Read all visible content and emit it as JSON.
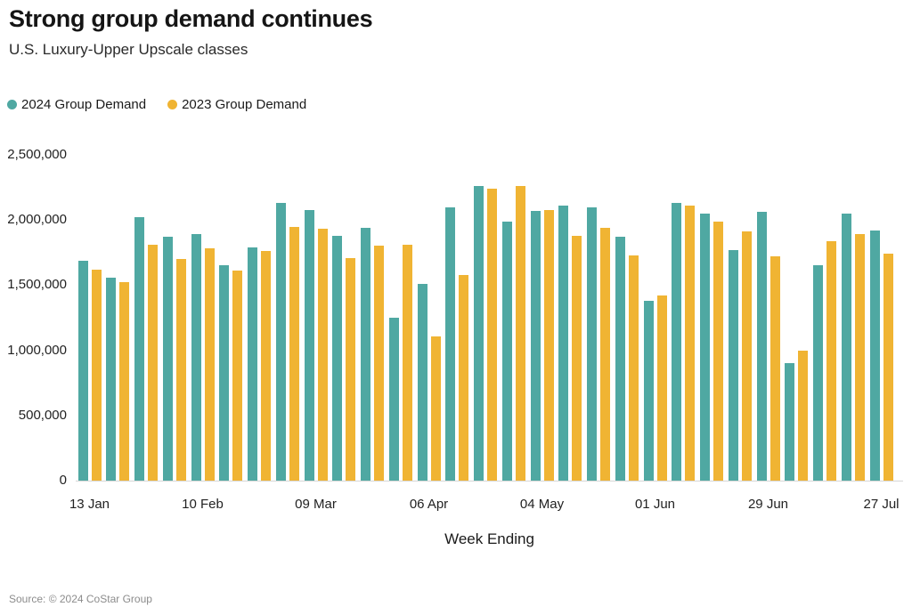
{
  "header": {
    "title": "Strong group demand continues",
    "subtitle": "U.S. Luxury-Upper Upscale classes"
  },
  "legend": {
    "items": [
      {
        "label": "2024 Group Demand",
        "color": "#4FA8A2"
      },
      {
        "label": "2023 Group Demand",
        "color": "#F0B433"
      }
    ]
  },
  "footer": {
    "source": "Source: © 2024 CoStar Group"
  },
  "chart_data": {
    "type": "bar",
    "title": "Strong group demand continues",
    "subtitle": "U.S. Luxury-Upper Upscale classes",
    "xlabel": "Week Ending",
    "ylabel": "",
    "ylim": [
      0,
      2500000
    ],
    "grid": false,
    "legend_position": "top-left",
    "bar_colors": {
      "2024": "#4FA8A2",
      "2023": "#F0B433"
    },
    "n_groups": 29,
    "y_ticks": [
      {
        "value": 2500000,
        "label": "2,500,000"
      },
      {
        "value": 2000000,
        "label": "2,000,000"
      },
      {
        "value": 1500000,
        "label": "1,500,000"
      },
      {
        "value": 1000000,
        "label": "1,000,000"
      },
      {
        "value": 500000,
        "label": "500,000"
      },
      {
        "value": 0,
        "label": "0"
      }
    ],
    "x_ticks": [
      {
        "group_index": 0,
        "label": "13 Jan"
      },
      {
        "group_index": 4,
        "label": "10 Feb"
      },
      {
        "group_index": 8,
        "label": "09 Mar"
      },
      {
        "group_index": 12,
        "label": "06 Apr"
      },
      {
        "group_index": 16,
        "label": "04 May"
      },
      {
        "group_index": 20,
        "label": "01 Jun"
      },
      {
        "group_index": 24,
        "label": "29 Jun"
      },
      {
        "group_index": 28,
        "label": "27 Jul"
      }
    ],
    "series": [
      {
        "name": "2024 Group Demand",
        "color": "#4FA8A2",
        "values": [
          1690000,
          1560000,
          2020000,
          1870000,
          1890000,
          1650000,
          1790000,
          2130000,
          2080000,
          1880000,
          1940000,
          1250000,
          1510000,
          2100000,
          2260000,
          1990000,
          2070000,
          2110000,
          2100000,
          1870000,
          1380000,
          2130000,
          2050000,
          1770000,
          2060000,
          900000,
          1650000,
          2050000,
          1920000
        ]
      },
      {
        "name": "2023 Group Demand",
        "color": "#F0B433",
        "values": [
          1620000,
          1520000,
          1810000,
          1700000,
          1780000,
          1610000,
          1760000,
          1950000,
          1930000,
          1710000,
          1800000,
          1810000,
          1110000,
          1580000,
          2240000,
          2260000,
          2080000,
          1880000,
          1940000,
          1730000,
          1420000,
          2110000,
          1990000,
          1910000,
          1720000,
          1000000,
          1840000,
          1890000,
          1740000
        ]
      }
    ]
  }
}
